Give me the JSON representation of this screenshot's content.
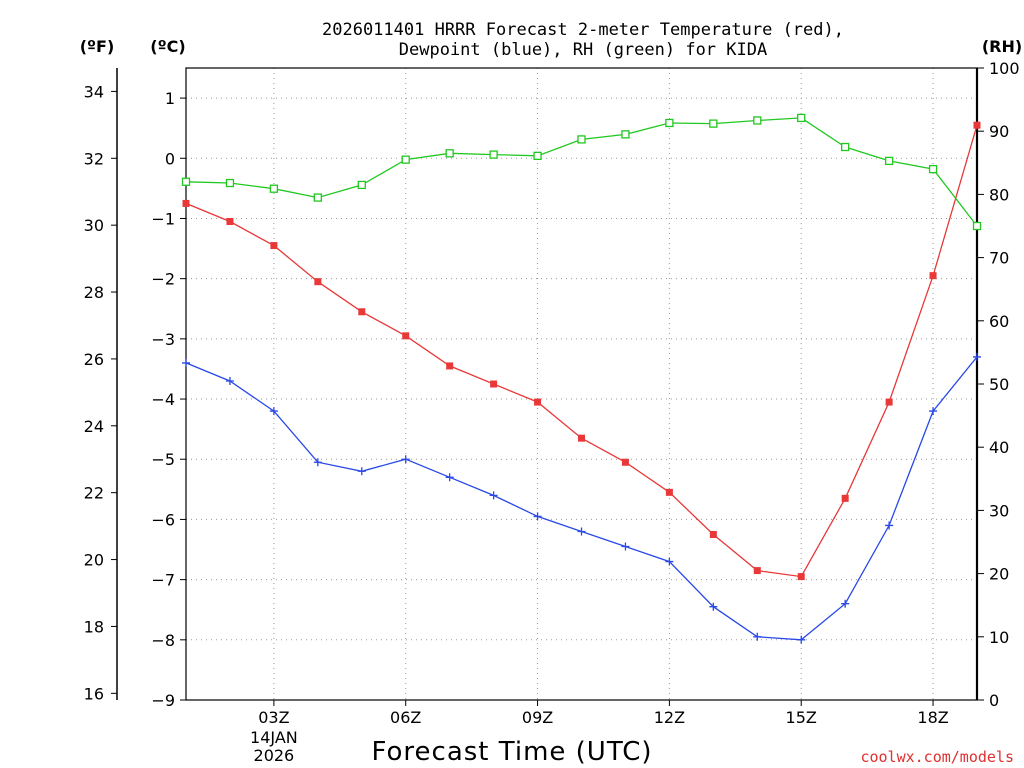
{
  "chart_data": {
    "type": "line",
    "title_lines": [
      "2026011401 HRRR Forecast 2-meter Temperature (red),",
      "Dewpoint (blue), RH (green) for KIDA"
    ],
    "xlabel": "Forecast Time (UTC)",
    "credit": "coolwx.com/models",
    "unit_labels": {
      "fahrenheit": "(ºF)",
      "celsius": "(ºC)",
      "rh": "(RH)"
    },
    "x_hours": [
      1,
      2,
      3,
      4,
      5,
      6,
      7,
      8,
      9,
      10,
      11,
      12,
      13,
      14,
      15,
      16,
      17,
      18,
      19
    ],
    "x_ticks": [
      {
        "hour": 3,
        "label": "03Z"
      },
      {
        "hour": 6,
        "label": "06Z"
      },
      {
        "hour": 9,
        "label": "09Z"
      },
      {
        "hour": 12,
        "label": "12Z"
      },
      {
        "hour": 15,
        "label": "15Z"
      },
      {
        "hour": 18,
        "label": "18Z"
      }
    ],
    "date_labels": [
      "14JAN",
      "2026"
    ],
    "celsius_axis": {
      "range": [
        -9,
        1.5
      ],
      "ticks": [
        1,
        0,
        -1,
        -2,
        -3,
        -4,
        -5,
        -6,
        -7,
        -8,
        -9
      ],
      "tick_labels": [
        "1",
        "0",
        "−1",
        "−2",
        "−3",
        "−4",
        "−5",
        "−6",
        "−7",
        "−8",
        "−9"
      ]
    },
    "fahrenheit_axis": {
      "range": [
        15.8,
        34.7
      ],
      "ticks": [
        16,
        18,
        20,
        22,
        24,
        26,
        28,
        30,
        32,
        34
      ],
      "tick_labels": [
        "16",
        "18",
        "20",
        "22",
        "24",
        "26",
        "28",
        "30",
        "32",
        "34"
      ]
    },
    "rh_axis": {
      "range": [
        0,
        100
      ],
      "ticks": [
        0,
        10,
        20,
        30,
        40,
        50,
        60,
        70,
        80,
        90,
        100
      ],
      "tick_labels": [
        "0",
        "10",
        "20",
        "30",
        "40",
        "50",
        "60",
        "70",
        "80",
        "90",
        "100"
      ]
    },
    "series": [
      {
        "name": "Temperature",
        "unit": "C",
        "color": "#e83838",
        "marker": "filled-square",
        "values": [
          -0.75,
          -1.05,
          -1.45,
          -2.05,
          -2.55,
          -2.95,
          -3.45,
          -3.75,
          -4.05,
          -4.65,
          -5.05,
          -5.55,
          -6.25,
          -6.85,
          -6.95,
          -5.65,
          -4.05,
          -1.95,
          0.55
        ]
      },
      {
        "name": "Dewpoint",
        "unit": "C",
        "color": "#2848e8",
        "marker": "plus",
        "values": [
          -3.4,
          -3.7,
          -4.2,
          -5.05,
          -5.2,
          -5.0,
          -5.3,
          -5.6,
          -5.95,
          -6.2,
          -6.45,
          -6.7,
          -7.45,
          -7.95,
          -8.0,
          -7.4,
          -6.1,
          -4.2,
          -3.3
        ]
      },
      {
        "name": "RH",
        "unit": "%",
        "color": "#20c820",
        "marker": "open-square",
        "values": [
          82,
          81.8,
          80.9,
          79.5,
          81.5,
          85.5,
          86.5,
          86.3,
          86.1,
          88.7,
          89.5,
          91.3,
          91.2,
          91.7,
          92.1,
          87.5,
          85.3,
          84,
          75
        ]
      }
    ]
  }
}
